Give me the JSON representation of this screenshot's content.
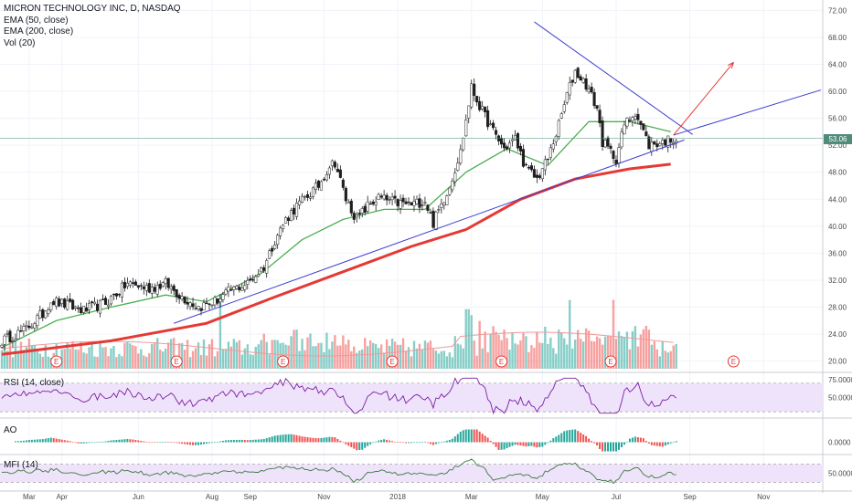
{
  "legend": {
    "title": "MICRON TECHNOLOGY INC, D, NASDAQ",
    "ema50": "EMA (50, close)",
    "ema200": "EMA (200, close)",
    "vol": "Vol (20)"
  },
  "panes": {
    "rsi": "RSI (14, close)",
    "ao": "AO",
    "mfi": "MFI (14)"
  },
  "last_price": "53.06",
  "colors": {
    "up": "#26a69a",
    "down": "#ef5350",
    "ema50": "#4caf50",
    "ema200": "#e53935",
    "trend": "#3f3fcf",
    "projection": "#e53935",
    "rsi_line": "#7b1fa2",
    "mfi_line": "#3a7a3a",
    "band": "#efe3fb",
    "earnings": "#e53935"
  },
  "chart_data": [
    {
      "type": "candlestick",
      "title": "MICRON TECHNOLOGY INC, D, NASDAQ",
      "x_ticks": [
        "Mar",
        "Apr",
        "Jun",
        "Aug",
        "Sep",
        "Nov",
        "2018",
        "Mar",
        "May",
        "Jul",
        "Sep",
        "Nov"
      ],
      "y_ticks": [
        20,
        24,
        28,
        32,
        36,
        40,
        44,
        48,
        52,
        56,
        60,
        64,
        68,
        72
      ],
      "y_tick_labels": [
        "20.00",
        "24.00",
        "28.00",
        "32.00",
        "36.00",
        "40.00",
        "44.00",
        "48.00",
        "52.00",
        "56.00",
        "60.00",
        "64.00",
        "68.00",
        "72.00"
      ],
      "ylim": [
        19,
        73
      ],
      "xlim": [
        0,
        300
      ],
      "last_price": 53.06,
      "close_path": [
        [
          0,
          23
        ],
        [
          8,
          24.5
        ],
        [
          15,
          27
        ],
        [
          18,
          29
        ],
        [
          22,
          28.5
        ],
        [
          30,
          27.5
        ],
        [
          38,
          28.6
        ],
        [
          46,
          31.5
        ],
        [
          54,
          30.8
        ],
        [
          60,
          31.5
        ],
        [
          66,
          29.5
        ],
        [
          72,
          28
        ],
        [
          78,
          28.8
        ],
        [
          84,
          30.5
        ],
        [
          90,
          31.5
        ],
        [
          96,
          34
        ],
        [
          100,
          38
        ],
        [
          104,
          41
        ],
        [
          108,
          43
        ],
        [
          112,
          44.5
        ],
        [
          116,
          46
        ],
        [
          120,
          49
        ],
        [
          122,
          49.5
        ],
        [
          126,
          44
        ],
        [
          130,
          41
        ],
        [
          134,
          43
        ],
        [
          138,
          44.2
        ],
        [
          144,
          43.5
        ],
        [
          150,
          43.2
        ],
        [
          155,
          43.8
        ],
        [
          158,
          40.5
        ],
        [
          164,
          46
        ],
        [
          168,
          51
        ],
        [
          172,
          60.5
        ],
        [
          176,
          57
        ],
        [
          180,
          54
        ],
        [
          184,
          51.5
        ],
        [
          188,
          53
        ],
        [
          192,
          48.5
        ],
        [
          196,
          47
        ],
        [
          200,
          50
        ],
        [
          204,
          55
        ],
        [
          207,
          59.5
        ],
        [
          210,
          63
        ],
        [
          214,
          61
        ],
        [
          218,
          57.5
        ],
        [
          220,
          52.5
        ],
        [
          225,
          50
        ],
        [
          228,
          55
        ],
        [
          232,
          57
        ],
        [
          237,
          52
        ],
        [
          242,
          52.5
        ],
        [
          246,
          53.06
        ]
      ],
      "ema50_path": [
        [
          0,
          22
        ],
        [
          20,
          26
        ],
        [
          40,
          28
        ],
        [
          60,
          29.8
        ],
        [
          75,
          28.8
        ],
        [
          95,
          33
        ],
        [
          110,
          38
        ],
        [
          125,
          41
        ],
        [
          140,
          42.5
        ],
        [
          155,
          42.5
        ],
        [
          170,
          48
        ],
        [
          185,
          51.5
        ],
        [
          200,
          49
        ],
        [
          215,
          55.5
        ],
        [
          230,
          55.5
        ],
        [
          245,
          54
        ]
      ],
      "ema200_path": [
        [
          0,
          21
        ],
        [
          40,
          23
        ],
        [
          75,
          25.6
        ],
        [
          100,
          29.5
        ],
        [
          130,
          34
        ],
        [
          150,
          37
        ],
        [
          170,
          39.5
        ],
        [
          190,
          44
        ],
        [
          210,
          47
        ],
        [
          230,
          48.5
        ],
        [
          245,
          49.2
        ]
      ],
      "trendlines": [
        {
          "from": [
            63,
            25.6
          ],
          "to": [
            250,
            52.8
          ]
        },
        {
          "from": [
            195,
            70.3
          ],
          "to": [
            253,
            53.6
          ]
        },
        {
          "from": [
            246,
            53.5
          ],
          "to": [
            300,
            60.2
          ]
        }
      ],
      "projection_arrow": {
        "from": [
          246,
          53.5
        ],
        "to": [
          268,
          64.3
        ]
      },
      "horizontal_level": 53.06,
      "earnings_markers": [
        20,
        64,
        103,
        143,
        183,
        223,
        268
      ]
    },
    {
      "type": "bar",
      "title": "Vol (20)",
      "note": "volume histogram overlaid at the bottom of the price pane, green = up day, red = down day"
    },
    {
      "type": "line",
      "title": "RSI (14, close)",
      "y_ticks": [
        75,
        50
      ],
      "y_tick_labels": [
        "75.0000",
        "50.0000"
      ],
      "band": [
        30,
        70
      ],
      "ylim": [
        25,
        80
      ],
      "last": 49
    },
    {
      "type": "bar",
      "title": "AO",
      "y_ticks": [
        0
      ],
      "y_tick_labels": [
        "0.0000"
      ]
    },
    {
      "type": "line",
      "title": "MFI (14)",
      "y_ticks": [
        50
      ],
      "y_tick_labels": [
        "50.0000"
      ],
      "band": [
        20,
        80
      ],
      "ylim": [
        0,
        100
      ],
      "last": 45
    }
  ]
}
